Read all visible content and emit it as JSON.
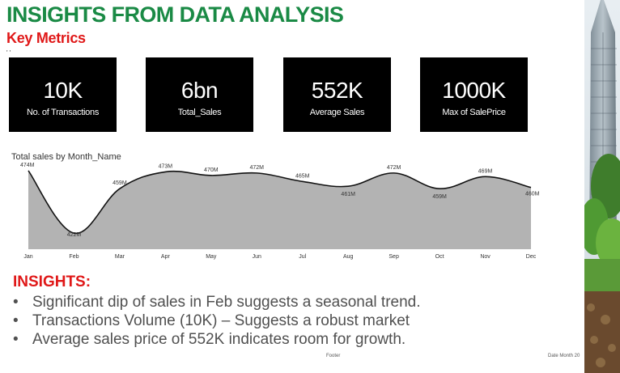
{
  "header": {
    "title": "INSIGHTS FROM DATA ANALYSIS",
    "subtitle": "Key Metrics",
    "tiny_mark": "' '"
  },
  "kpis": [
    {
      "value": "10K",
      "label": "No. of Transactions"
    },
    {
      "value": "6bn",
      "label": "Total_Sales"
    },
    {
      "value": "552K",
      "label": "Average Sales"
    },
    {
      "value": "1000K",
      "label": "Max of SalePrice"
    }
  ],
  "chart_data": {
    "type": "area",
    "title": "Total sales by Month_Name",
    "categories": [
      "Jan",
      "Feb",
      "Mar",
      "Apr",
      "May",
      "Jun",
      "Jul",
      "Aug",
      "Sep",
      "Oct",
      "Nov",
      "Dec"
    ],
    "values": [
      474,
      422,
      459,
      473,
      470,
      472,
      465,
      461,
      472,
      459,
      469,
      460
    ],
    "data_labels": [
      "474M",
      "422M",
      "459M",
      "473M",
      "470M",
      "472M",
      "465M",
      "461M",
      "472M",
      "459M",
      "469M",
      "460M"
    ],
    "unit": "M",
    "ylim": [
      410,
      480
    ],
    "fill_color": "#b3b3b3",
    "line_color": "#111111"
  },
  "insights": {
    "heading": "INSIGHTS:",
    "bullet_glyph": "•",
    "items": [
      "Significant dip of sales in Feb suggests a seasonal trend.",
      "Transactions  Volume (10K) – Suggests a robust market",
      "Average sales price of 552K indicates room for growth."
    ]
  },
  "footer": {
    "center": "Footer",
    "right": "Date Month 20"
  }
}
